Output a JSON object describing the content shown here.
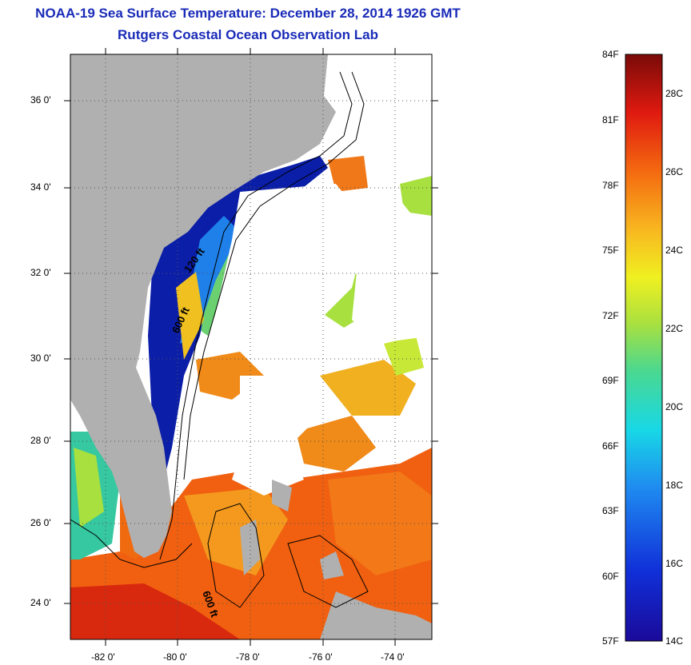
{
  "title": "NOAA-19 Sea Surface Temperature:  December 28, 2014 1926 GMT",
  "subtitle": "Rutgers Coastal Ocean Observation Lab",
  "lat_labels": [
    "36 0'",
    "34 0'",
    "32 0'",
    "30 0'",
    "28 0'",
    "26 0'",
    "24 0'"
  ],
  "lon_labels": [
    "-82 0'",
    "-80 0'",
    "-78 0'",
    "-76 0'",
    "-74 0'"
  ],
  "contour_labels": [
    "120 ft",
    "600 ft",
    "600 ft"
  ],
  "colorbar": {
    "fahrenheit_labels": [
      "84F",
      "81F",
      "78F",
      "75F",
      "72F",
      "69F",
      "66F",
      "63F",
      "60F",
      "57F"
    ],
    "celsius_labels": [
      "28C",
      "26C",
      "24C",
      "22C",
      "20C",
      "18C",
      "16C",
      "14C"
    ]
  },
  "colors": {
    "title": "#1a2bb8",
    "land": "#b0b0b0",
    "no_data": "#ffffff",
    "cold": "#0a1ea8",
    "warm": "#f06010"
  }
}
